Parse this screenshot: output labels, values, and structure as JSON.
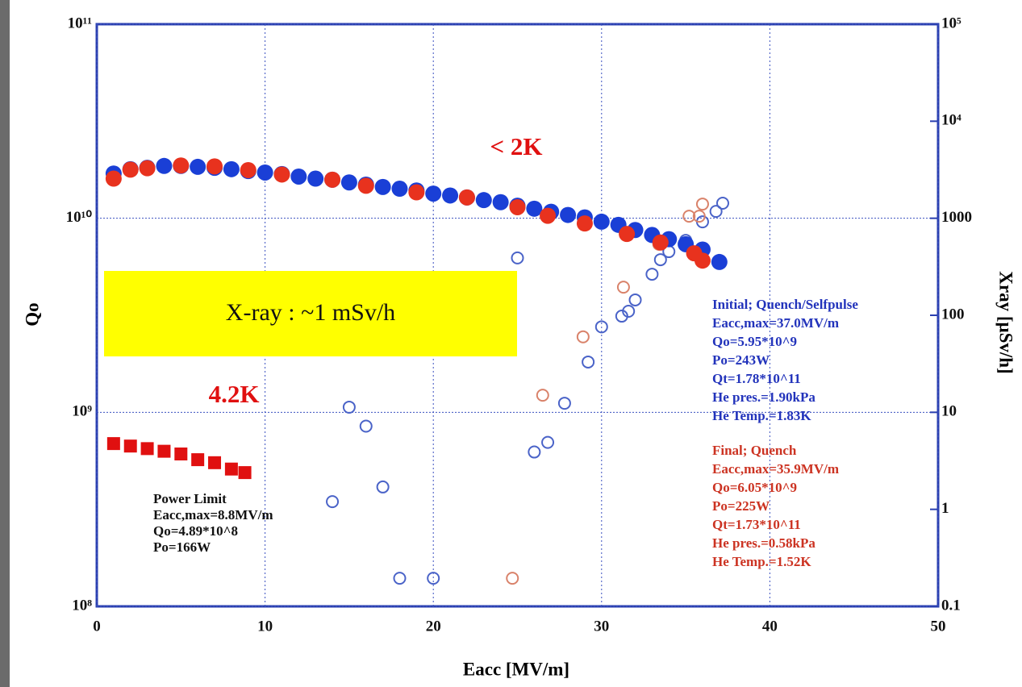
{
  "chart_data": {
    "type": "scatter",
    "xlabel": "Eacc [MV/m]",
    "ylabel": "Qo",
    "y2label": "Xray [μSv/h]",
    "xlim": [
      0,
      50
    ],
    "xticks": [
      0,
      10,
      20,
      30,
      40,
      50
    ],
    "ylim": [
      100000000,
      100000000000
    ],
    "yticks": [
      {
        "value": 100000000,
        "label": "10⁸"
      },
      {
        "value": 1000000000,
        "label": "10⁹"
      },
      {
        "value": 10000000000,
        "label": "10¹⁰"
      },
      {
        "value": 100000000000,
        "label": "10¹¹"
      }
    ],
    "y2lim": [
      0.1,
      100000
    ],
    "y2ticks": [
      0.1,
      1,
      10,
      100,
      1000,
      {
        "value": 10000,
        "label": "10⁴"
      },
      {
        "value": 100000,
        "label": "10⁵"
      }
    ],
    "log_y": true,
    "log_y2": true,
    "grid": true,
    "series": [
      {
        "name": "Initial; Quench/Selfpulse",
        "color": "#1a3fd6",
        "marker": "circle",
        "details": [
          "Eacc,max=37.0MV/m",
          "Qo=5.95*10^9",
          "Po=243W",
          "Qt=1.78*10^11",
          "He pres.=1.90kPa",
          "He Temp.=1.83K"
        ],
        "x": [
          1,
          2,
          3,
          4,
          5,
          6,
          7,
          8,
          9,
          10,
          11,
          12,
          13,
          14,
          15,
          16,
          17,
          18,
          19,
          20,
          21,
          22,
          23,
          24,
          25,
          26,
          27,
          28,
          29,
          30,
          31,
          32,
          33,
          34,
          35,
          36,
          37
        ],
        "values": [
          17000000000,
          17900000000,
          18200000000,
          18600000000,
          18600000000,
          18400000000,
          18200000000,
          17900000000,
          17500000000,
          17200000000,
          16900000000,
          16400000000,
          16000000000,
          15800000000,
          15300000000,
          14900000000,
          14500000000,
          14200000000,
          13900000000,
          13400000000,
          13100000000,
          12800000000,
          12400000000,
          12100000000,
          11600000000,
          11200000000,
          10800000000,
          10400000000,
          10100000000,
          9600000000,
          9250000000,
          8700000000,
          8200000000,
          7800000000,
          7350000000,
          6900000000,
          5950000000
        ]
      },
      {
        "name": "Final; Quench",
        "color": "#e8321e",
        "marker": "circle",
        "details": [
          "Eacc,max=35.9MV/m",
          "Qo=6.05*10^9",
          "Po=225W",
          "Qt=1.73*10^11",
          "He pres.=0.58kPa",
          "He Temp.=1.52K"
        ],
        "x": [
          1,
          2,
          3,
          5,
          7,
          9,
          11,
          14,
          16,
          19,
          22,
          25,
          26.8,
          29,
          31.5,
          33.5,
          35.5,
          36
        ],
        "values": [
          16000000000,
          17800000000,
          18100000000,
          18700000000,
          18500000000,
          17700000000,
          16800000000,
          15800000000,
          14700000000,
          13600000000,
          12800000000,
          11400000000,
          10300000000,
          9400000000,
          8300000000,
          7500000000,
          6600000000,
          6050000000
        ]
      },
      {
        "name": "Power Limit",
        "color": "#e01010",
        "marker": "square",
        "details": [
          "Eacc,max=8.8MV/m",
          "Qo=4.89*10^8",
          "Po=166W"
        ],
        "x": [
          1,
          2,
          3,
          4,
          5,
          6,
          7,
          8,
          8.8
        ],
        "values": [
          690000000,
          670000000,
          650000000,
          630000000,
          610000000,
          570000000,
          550000000,
          510000000,
          489000000
        ]
      },
      {
        "color": "#4a63c8",
        "marker": "open-circle",
        "axis": "y2",
        "x": [
          18,
          20,
          14,
          17,
          15,
          16,
          25,
          26,
          26.8,
          27.8,
          29.2,
          30,
          31.2,
          31.6,
          32,
          33,
          33.5,
          34,
          35,
          36,
          36.8,
          37.2
        ],
        "values": [
          0.195,
          0.195,
          1.2,
          1.7,
          11.3,
          7.2,
          390,
          3.9,
          4.9,
          12.4,
          33,
          76,
          98,
          110,
          144,
          265,
          374,
          453,
          592,
          919,
          1178,
          1430
        ]
      },
      {
        "color": "#d9826a",
        "marker": "open-circle",
        "axis": "y2",
        "x": [
          24.7,
          26.5,
          28.9,
          31.3,
          33.4,
          35.2,
          35.8,
          36
        ],
        "values": [
          0.195,
          15,
          60,
          195,
          540,
          1050,
          1050,
          1400
        ]
      }
    ],
    "annotations": [
      {
        "text": "< 2K",
        "color": "#e01010"
      },
      {
        "text": "4.2K",
        "color": "#e01010"
      },
      {
        "text": "X-ray : ~1 mSv/h",
        "color": "#111111",
        "background": "#ffff00"
      }
    ]
  }
}
